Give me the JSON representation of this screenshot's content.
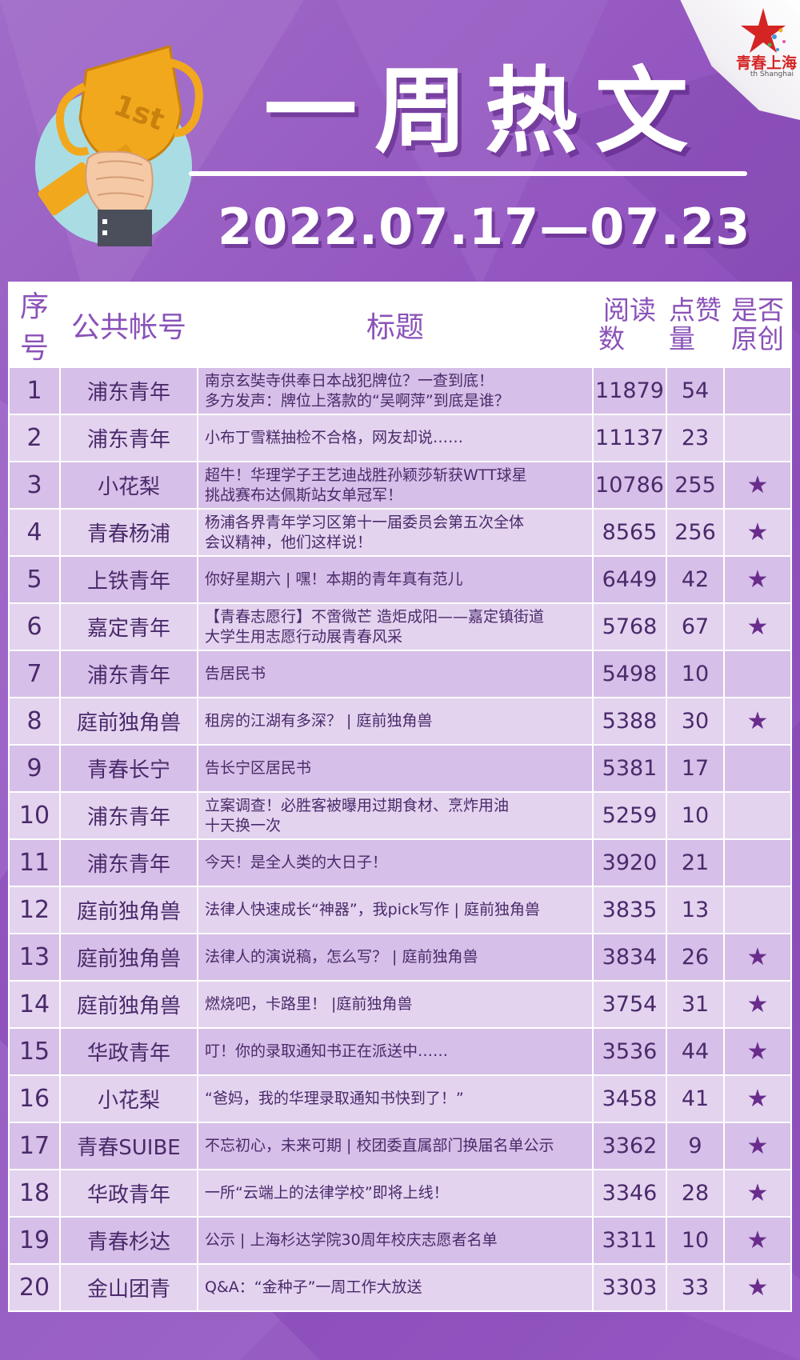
{
  "header": {
    "title": "一周热文",
    "date_range": "2022.07.17—07.23",
    "trophy_label": "1st"
  },
  "logo": {
    "name": "青春上海",
    "subtitle": "th Shanghai"
  },
  "table": {
    "columns": {
      "num": "序号",
      "account": "公共帐号",
      "title": "标题",
      "reads_line1": "阅读",
      "reads_line2": "数",
      "likes_line1": "点赞",
      "likes_line2": "量",
      "original_line1": "是否",
      "original_line2": "原创"
    },
    "rows": [
      {
        "num": "1",
        "account": "浦东青年",
        "title_line1": "南京玄奘寺供奉日本战犯牌位？一查到底！",
        "title_line2": "多方发声：牌位上落款的“吴啊萍”到底是谁？",
        "reads": "11879",
        "likes": "54",
        "original": ""
      },
      {
        "num": "2",
        "account": "浦东青年",
        "title_line1": "小布丁雪糕抽检不合格，网友却说……",
        "title_line2": "",
        "reads": "11137",
        "likes": "23",
        "original": ""
      },
      {
        "num": "3",
        "account": "小花梨",
        "title_line1": "超牛！华理学子王艺迪战胜孙颖莎斩获WTT球星",
        "title_line2": "挑战赛布达佩斯站女单冠军！",
        "reads": "10786",
        "likes": "255",
        "original": "★"
      },
      {
        "num": "4",
        "account": "青春杨浦",
        "title_line1": "杨浦各界青年学习区第十一届委员会第五次全体",
        "title_line2": "会议精神，他们这样说！",
        "reads": "8565",
        "likes": "256",
        "original": "★"
      },
      {
        "num": "5",
        "account": "上铁青年",
        "title_line1": "你好星期六 | 嘿！本期的青年真有范儿",
        "title_line2": "",
        "reads": "6449",
        "likes": "42",
        "original": "★"
      },
      {
        "num": "6",
        "account": "嘉定青年",
        "title_line1": "【青春志愿行】不啻微芒 造炬成阳——嘉定镇街道",
        "title_line2": "大学生用志愿行动展青春风采",
        "reads": "5768",
        "likes": "67",
        "original": "★"
      },
      {
        "num": "7",
        "account": "浦东青年",
        "title_line1": "告居民书",
        "title_line2": "",
        "reads": "5498",
        "likes": "10",
        "original": ""
      },
      {
        "num": "8",
        "account": "庭前独角兽",
        "title_line1": "租房的江湖有多深？ | 庭前独角兽",
        "title_line2": "",
        "reads": "5388",
        "likes": "30",
        "original": "★"
      },
      {
        "num": "9",
        "account": "青春长宁",
        "title_line1": "告长宁区居民书",
        "title_line2": "",
        "reads": "5381",
        "likes": "17",
        "original": ""
      },
      {
        "num": "10",
        "account": "浦东青年",
        "title_line1": "立案调查！必胜客被曝用过期食材、烹炸用油",
        "title_line2": "十天换一次",
        "reads": "5259",
        "likes": "10",
        "original": ""
      },
      {
        "num": "11",
        "account": "浦东青年",
        "title_line1": "今天！是全人类的大日子！",
        "title_line2": "",
        "reads": "3920",
        "likes": "21",
        "original": ""
      },
      {
        "num": "12",
        "account": "庭前独角兽",
        "title_line1": "法律人快速成长“神器”，我pick写作 | 庭前独角兽",
        "title_line2": "",
        "reads": "3835",
        "likes": "13",
        "original": ""
      },
      {
        "num": "13",
        "account": "庭前独角兽",
        "title_line1": "法律人的演说稿，怎么写？ | 庭前独角兽",
        "title_line2": "",
        "reads": "3834",
        "likes": "26",
        "original": "★"
      },
      {
        "num": "14",
        "account": "庭前独角兽",
        "title_line1": "燃烧吧，卡路里！ |庭前独角兽",
        "title_line2": "",
        "reads": "3754",
        "likes": "31",
        "original": "★"
      },
      {
        "num": "15",
        "account": "华政青年",
        "title_line1": "叮！你的录取通知书正在派送中……",
        "title_line2": "",
        "reads": "3536",
        "likes": "44",
        "original": "★"
      },
      {
        "num": "16",
        "account": "小花梨",
        "title_line1": "“爸妈，我的华理录取通知书快到了！”",
        "title_line2": "",
        "reads": "3458",
        "likes": "41",
        "original": "★"
      },
      {
        "num": "17",
        "account": "青春SUIBE",
        "title_line1": "不忘初心，未来可期 | 校团委直属部门换届名单公示",
        "title_line2": "",
        "reads": "3362",
        "likes": "9",
        "original": "★"
      },
      {
        "num": "18",
        "account": "华政青年",
        "title_line1": "一所“云端上的法律学校”即将上线！",
        "title_line2": "",
        "reads": "3346",
        "likes": "28",
        "original": "★"
      },
      {
        "num": "19",
        "account": "青春杉达",
        "title_line1": "公示 | 上海杉达学院30周年校庆志愿者名单",
        "title_line2": "",
        "reads": "3311",
        "likes": "10",
        "original": "★"
      },
      {
        "num": "20",
        "account": "金山团青",
        "title_line1": "Q&A：“金种子”一周工作大放送",
        "title_line2": "",
        "reads": "3303",
        "likes": "33",
        "original": "★"
      }
    ]
  }
}
